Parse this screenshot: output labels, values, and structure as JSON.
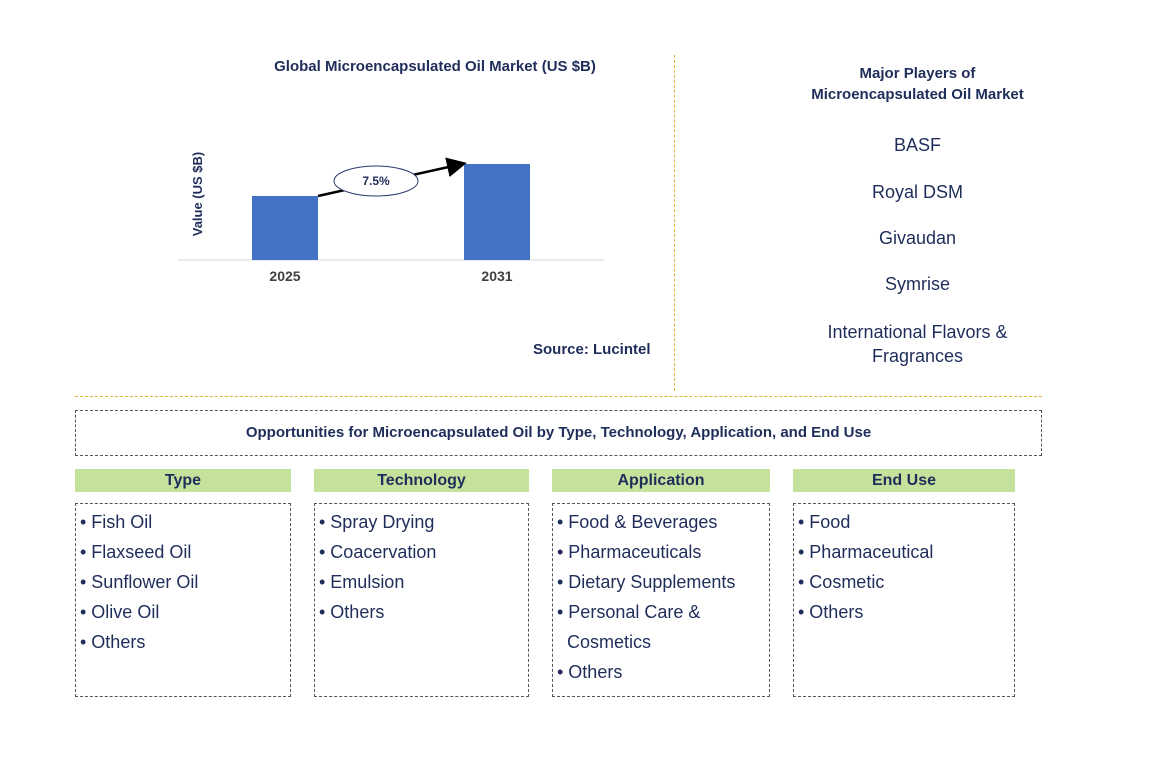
{
  "chart_data": {
    "type": "bar",
    "title": "Global Microencapsulated Oil Market (US $B)",
    "ylabel": "Value (US $B)",
    "categories": [
      "2025",
      "2031"
    ],
    "values": [
      1.0,
      1.5
    ],
    "annotation": {
      "label": "7.5%",
      "meaning": "CAGR"
    },
    "bar_color": "#4472c4"
  },
  "source": "Source: Lucintel",
  "players": {
    "title_line1": "Major Players of",
    "title_line2": "Microencapsulated Oil Market",
    "items": [
      "BASF",
      "Royal DSM",
      "Givaudan",
      "Symrise",
      "International Flavors &",
      "Fragrances"
    ]
  },
  "opportunities": {
    "title": "Opportunities for Microencapsulated Oil by Type, Technology, Application, and End Use"
  },
  "categories": [
    {
      "head": "Type",
      "items": [
        "• Fish Oil",
        "• Flaxseed Oil",
        "• Sunflower Oil",
        "• Olive Oil",
        "• Others"
      ]
    },
    {
      "head": "Technology",
      "items": [
        "• Spray Drying",
        "• Coacervation",
        "• Emulsion",
        "• Others"
      ]
    },
    {
      "head": "Application",
      "items": [
        "• Food & Beverages",
        "• Pharmaceuticals",
        "• Dietary Supplements",
        "• Personal Care &",
        "  Cosmetics",
        "• Others"
      ]
    },
    {
      "head": "End Use",
      "items": [
        "• Food",
        "• Pharmaceutical",
        "• Cosmetic",
        "• Others"
      ]
    }
  ]
}
